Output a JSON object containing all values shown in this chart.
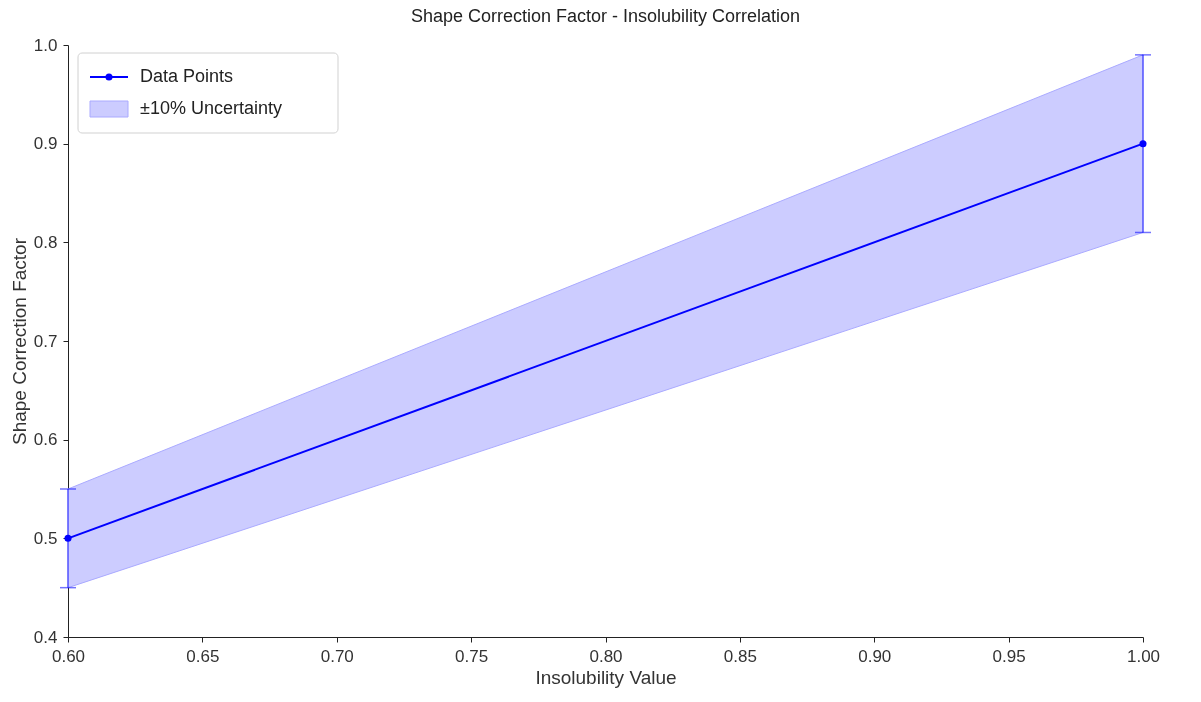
{
  "chart_data": {
    "type": "line",
    "title": "Shape Correction Factor - Insolubility Correlation",
    "xlabel": "Insolubility Value",
    "ylabel": "Shape Correction Factor",
    "x": [
      0.6,
      1.0
    ],
    "series": [
      {
        "name": "Data Points",
        "color": "#0000ff",
        "values": [
          0.5,
          0.9
        ],
        "errors": [
          [
            0.45,
            0.55
          ],
          [
            0.81,
            0.99
          ]
        ],
        "marker": "circle",
        "line_style": "solid"
      },
      {
        "name": "±10% Uncertainty",
        "type": "area",
        "color": "#ccccff",
        "values": [
          null,
          null
        ],
        "lower": [
          0.45,
          0.81
        ],
        "upper": [
          0.55,
          0.99
        ]
      }
    ],
    "xlim": [
      0.6,
      1.0
    ],
    "ylim": [
      0.4,
      1.0
    ],
    "xticks": [
      {
        "value": 0.6,
        "label": "0.60"
      },
      {
        "value": 0.65,
        "label": "0.65"
      },
      {
        "value": 0.7,
        "label": "0.70"
      },
      {
        "value": 0.75,
        "label": "0.75"
      },
      {
        "value": 0.8,
        "label": "0.80"
      },
      {
        "value": 0.85,
        "label": "0.85"
      },
      {
        "value": 0.9,
        "label": "0.90"
      },
      {
        "value": 0.95,
        "label": "0.95"
      },
      {
        "value": 1.0,
        "label": "1.00"
      }
    ],
    "yticks": [
      0.4,
      0.5,
      0.6,
      0.7,
      0.8,
      0.9,
      {
        "value": 1.0,
        "label": "1.0"
      }
    ],
    "grid": false,
    "legend": "top left"
  }
}
